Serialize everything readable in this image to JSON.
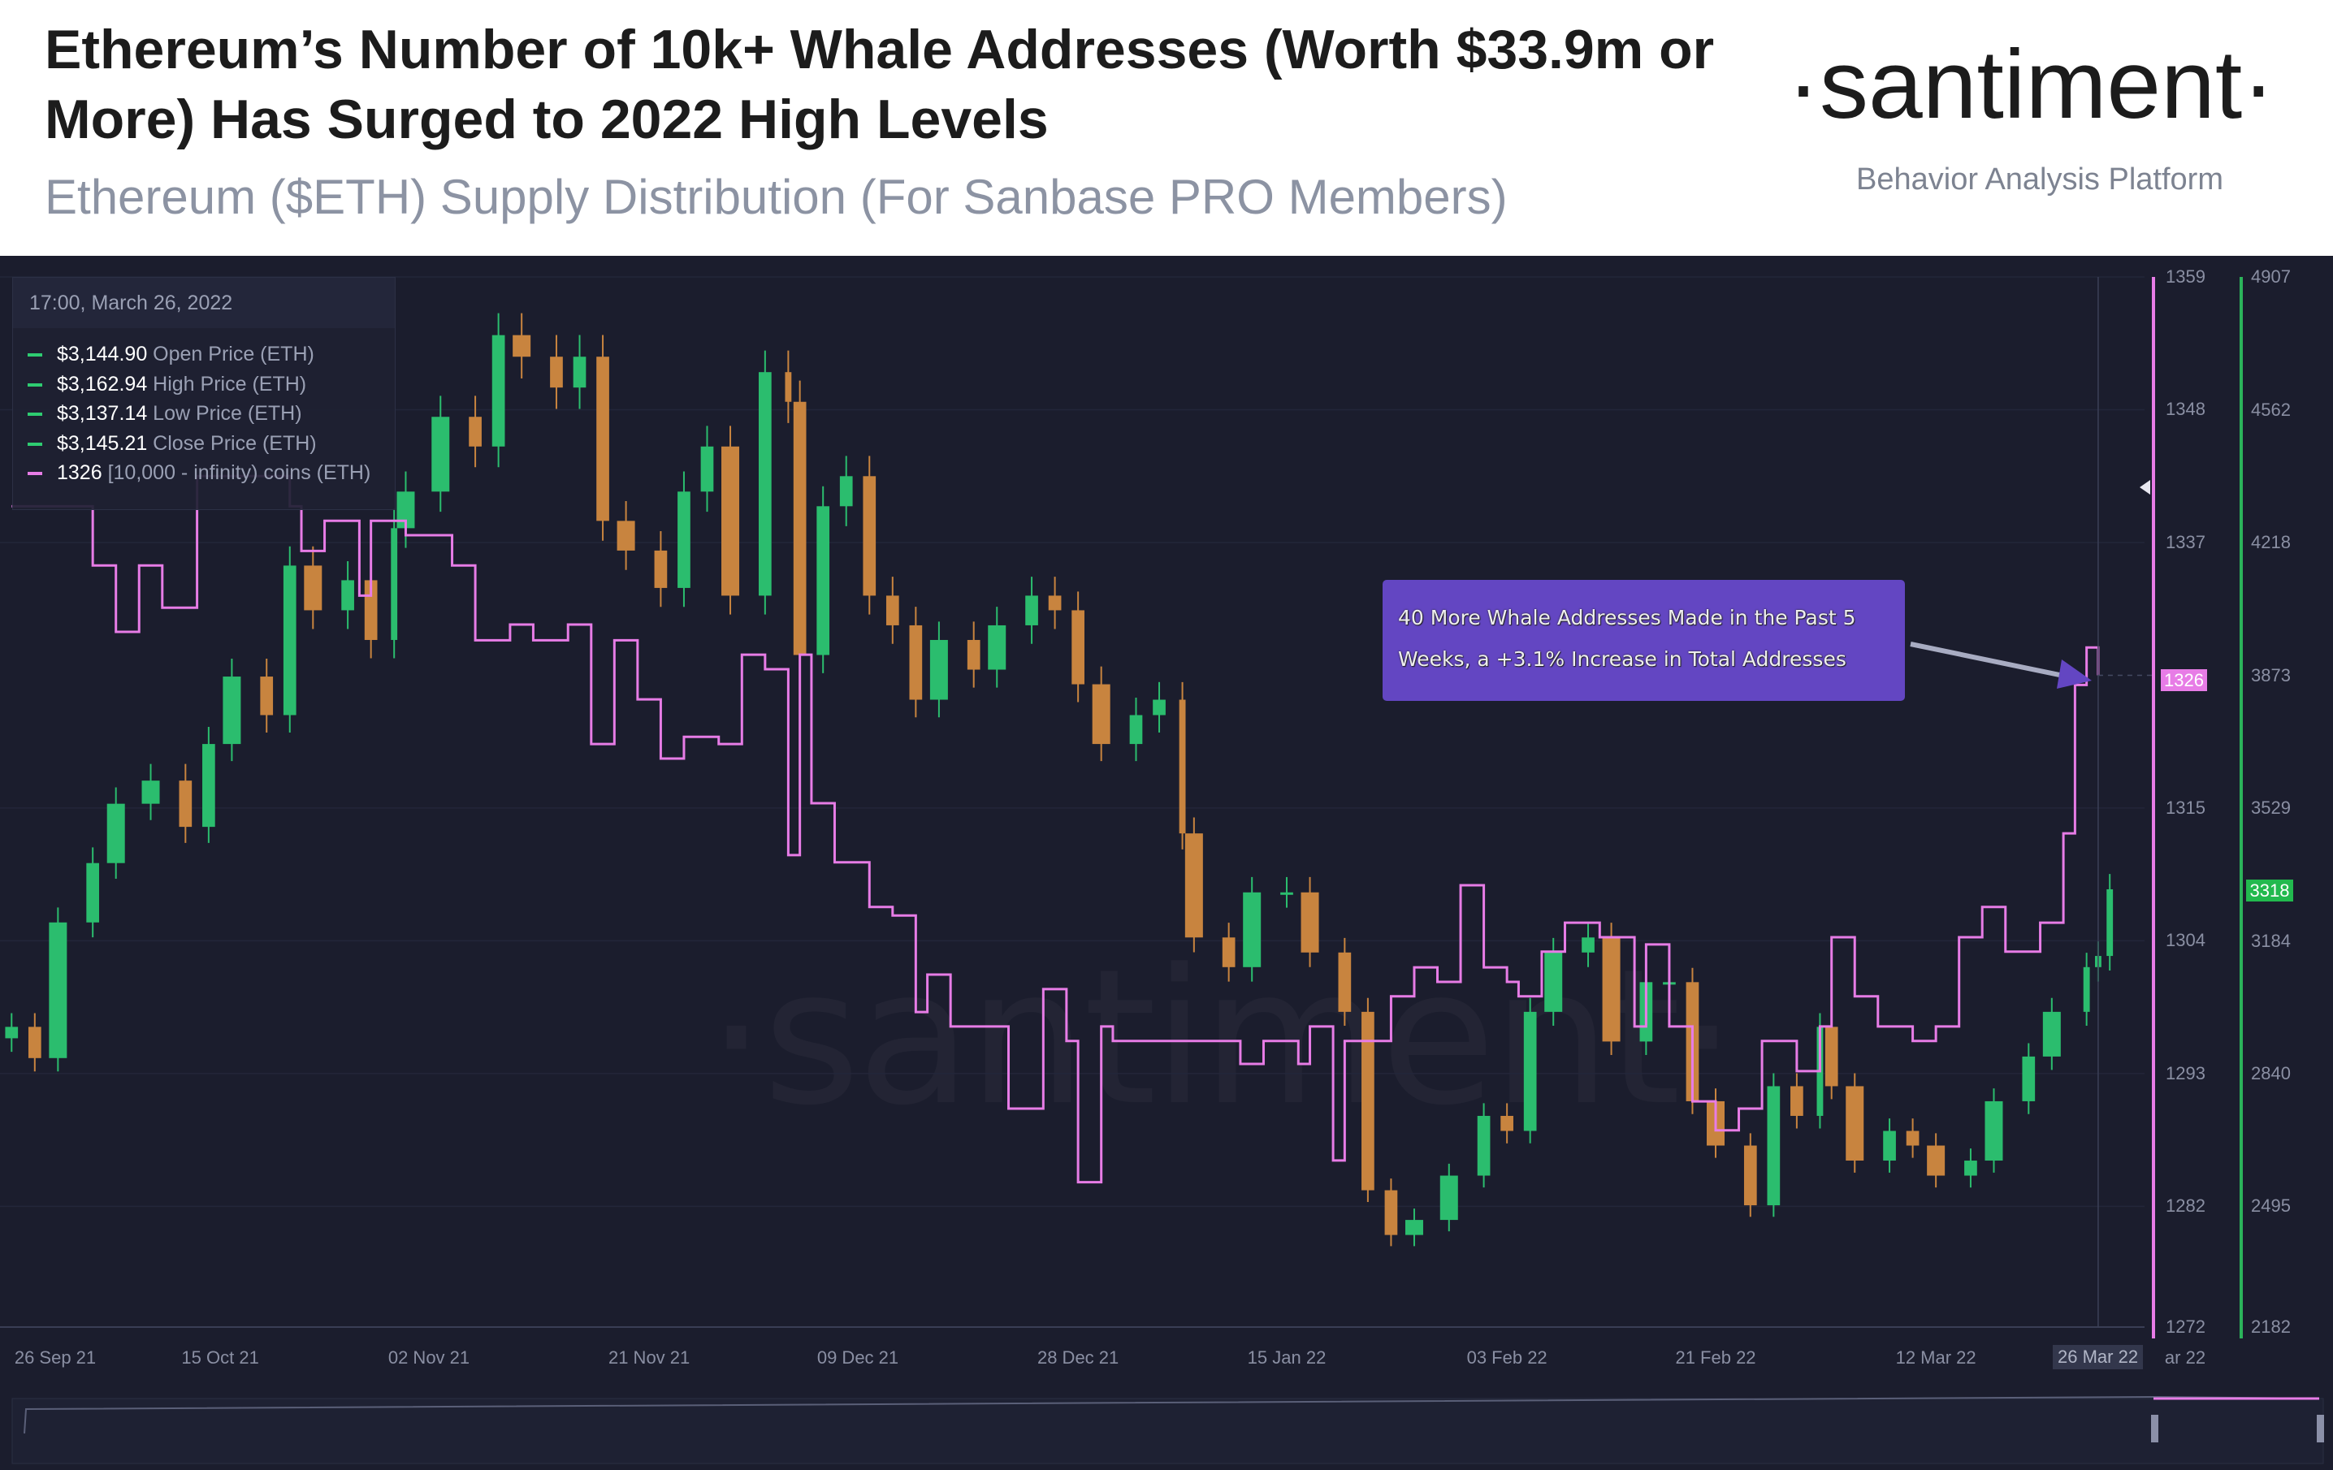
{
  "header": {
    "title": "Ethereum’s Number of 10k+ Whale Addresses (Worth $33.9m or More) Has Surged to 2022 High Levels",
    "subtitle": "Ethereum ($ETH) Supply Distribution (For Sanbase PRO Members)",
    "logo": "·santiment·",
    "tagline": "Behavior Analysis Platform"
  },
  "tooltip": {
    "date": "17:00, March 26, 2022",
    "rows": [
      {
        "value": "$3,144.90",
        "label": "Open Price (ETH)",
        "color": "#2ecc71"
      },
      {
        "value": "$3,162.94",
        "label": "High Price (ETH)",
        "color": "#2ecc71"
      },
      {
        "value": "$3,137.14",
        "label": "Low Price (ETH)",
        "color": "#2ecc71"
      },
      {
        "value": "$3,145.21",
        "label": "Close Price (ETH)",
        "color": "#2ecc71"
      },
      {
        "value": "1326",
        "label": "[10,000 - infinity) coins (ETH)",
        "color": "#e77ce6"
      }
    ]
  },
  "annotation": {
    "line1": "40 More Whale Addresses Made in the Past 5",
    "line2": "Weeks, a +3.1% Increase in Total Addresses"
  },
  "badges": {
    "whale": "1326",
    "price": "3318"
  },
  "crosshair_label": "26 Mar 22",
  "clipped_label": "ar 22",
  "colors": {
    "background": "#1b1d2d",
    "whale_line": "#e77ce6",
    "up_candle": "#2bbd6e",
    "down_candle": "#c8843f",
    "annotation": "#6346c2"
  },
  "chart_data": {
    "type": "candlestick+line",
    "xlim": [
      "2021-09-26",
      "2022-03-30"
    ],
    "x_ticks": [
      {
        "date": "2021-09-28",
        "label": "26 Sep 21"
      },
      {
        "date": "2021-10-15",
        "label": "15 Oct 21"
      },
      {
        "date": "2021-11-02",
        "label": "02 Nov 21"
      },
      {
        "date": "2021-11-21",
        "label": "21 Nov 21"
      },
      {
        "date": "2021-12-09",
        "label": "09 Dec 21"
      },
      {
        "date": "2021-12-28",
        "label": "28 Dec 21"
      },
      {
        "date": "2022-01-15",
        "label": "15 Jan 22"
      },
      {
        "date": "2022-02-03",
        "label": "03 Feb 22"
      },
      {
        "date": "2022-02-21",
        "label": "21 Feb 22"
      },
      {
        "date": "2022-03-12",
        "label": "12 Mar 22"
      }
    ],
    "whale_axis": {
      "ylim": [
        1272,
        1359
      ],
      "ticks": [
        1359,
        1348,
        1337,
        1315,
        1304,
        1293,
        1282,
        1272
      ]
    },
    "price_axis": {
      "ylim": [
        2182,
        4907
      ],
      "ticks": [
        4907,
        4562,
        4218,
        3873,
        3529,
        3184,
        2840,
        2495,
        2182
      ]
    },
    "series": [
      {
        "name": "Close Price (ETH)",
        "kind": "candlestick",
        "points": [
          [
            "2021-09-27",
            2961
          ],
          [
            "2021-09-29",
            2880
          ],
          [
            "2021-10-01",
            3232
          ],
          [
            "2021-10-04",
            3386
          ],
          [
            "2021-10-06",
            3540
          ],
          [
            "2021-10-09",
            3600
          ],
          [
            "2021-10-12",
            3480
          ],
          [
            "2021-10-14",
            3695
          ],
          [
            "2021-10-16",
            3870
          ],
          [
            "2021-10-19",
            3770
          ],
          [
            "2021-10-21",
            4158
          ],
          [
            "2021-10-23",
            4042
          ],
          [
            "2021-10-26",
            4120
          ],
          [
            "2021-10-28",
            3965
          ],
          [
            "2021-10-30",
            4255
          ],
          [
            "2021-10-31",
            4350
          ],
          [
            "2021-11-03",
            4544
          ],
          [
            "2021-11-06",
            4467
          ],
          [
            "2021-11-08",
            4756
          ],
          [
            "2021-11-10",
            4700
          ],
          [
            "2021-11-13",
            4620
          ],
          [
            "2021-11-15",
            4700
          ],
          [
            "2021-11-17",
            4274
          ],
          [
            "2021-11-19",
            4197
          ],
          [
            "2021-11-22",
            4100
          ],
          [
            "2021-11-24",
            4350
          ],
          [
            "2021-11-26",
            4467
          ],
          [
            "2021-11-28",
            4080
          ],
          [
            "2021-12-01",
            4660
          ],
          [
            "2021-12-03",
            4583
          ],
          [
            "2021-12-04",
            3926
          ],
          [
            "2021-12-06",
            4312
          ],
          [
            "2021-12-08",
            4390
          ],
          [
            "2021-12-10",
            4080
          ],
          [
            "2021-12-12",
            4003
          ],
          [
            "2021-12-14",
            3810
          ],
          [
            "2021-12-16",
            3965
          ],
          [
            "2021-12-19",
            3888
          ],
          [
            "2021-12-21",
            4003
          ],
          [
            "2021-12-24",
            4080
          ],
          [
            "2021-12-26",
            4042
          ],
          [
            "2021-12-28",
            3850
          ],
          [
            "2021-12-30",
            3695
          ],
          [
            "2022-01-02",
            3770
          ],
          [
            "2022-01-04",
            3810
          ],
          [
            "2022-01-06",
            3463
          ],
          [
            "2022-01-07",
            3193
          ],
          [
            "2022-01-10",
            3116
          ],
          [
            "2022-01-12",
            3310
          ],
          [
            "2022-01-15",
            3310
          ],
          [
            "2022-01-17",
            3154
          ],
          [
            "2022-01-20",
            3000
          ],
          [
            "2022-01-22",
            2537
          ],
          [
            "2022-01-24",
            2421
          ],
          [
            "2022-01-26",
            2460
          ],
          [
            "2022-01-29",
            2575
          ],
          [
            "2022-02-01",
            2730
          ],
          [
            "2022-02-03",
            2691
          ],
          [
            "2022-02-05",
            3000
          ],
          [
            "2022-02-07",
            3154
          ],
          [
            "2022-02-10",
            3193
          ],
          [
            "2022-02-12",
            2923
          ],
          [
            "2022-02-15",
            3077
          ],
          [
            "2022-02-17",
            3077
          ],
          [
            "2022-02-19",
            2768
          ],
          [
            "2022-02-21",
            2653
          ],
          [
            "2022-02-24",
            2498
          ],
          [
            "2022-02-26",
            2807
          ],
          [
            "2022-02-28",
            2730
          ],
          [
            "2022-03-02",
            2961
          ],
          [
            "2022-03-03",
            2807
          ],
          [
            "2022-03-05",
            2614
          ],
          [
            "2022-03-08",
            2691
          ],
          [
            "2022-03-10",
            2653
          ],
          [
            "2022-03-12",
            2575
          ],
          [
            "2022-03-15",
            2614
          ],
          [
            "2022-03-17",
            2768
          ],
          [
            "2022-03-20",
            2884
          ],
          [
            "2022-03-22",
            3000
          ],
          [
            "2022-03-25",
            3116
          ],
          [
            "2022-03-26",
            3145
          ],
          [
            "2022-03-27",
            3318
          ]
        ]
      },
      {
        "name": "[10,000 - infinity) coins (ETH)",
        "kind": "line",
        "points": [
          [
            "2021-09-27",
            1340
          ],
          [
            "2021-10-02",
            1340
          ],
          [
            "2021-10-04",
            1335.1
          ],
          [
            "2021-10-06",
            1329.6
          ],
          [
            "2021-10-08",
            1335.1
          ],
          [
            "2021-10-09",
            1335.1
          ],
          [
            "2021-10-10",
            1331.6
          ],
          [
            "2021-10-12",
            1331.6
          ],
          [
            "2021-10-13",
            1342.5
          ],
          [
            "2021-10-21",
            1340
          ],
          [
            "2021-10-22",
            1336.3
          ],
          [
            "2021-10-24",
            1338.8
          ],
          [
            "2021-10-27",
            1332.6
          ],
          [
            "2021-10-28",
            1338.8
          ],
          [
            "2021-10-31",
            1337.6
          ],
          [
            "2021-11-02",
            1337.6
          ],
          [
            "2021-11-04",
            1335.1
          ],
          [
            "2021-11-06",
            1328.9
          ],
          [
            "2021-11-09",
            1330.2
          ],
          [
            "2021-11-11",
            1328.9
          ],
          [
            "2021-11-14",
            1330.2
          ],
          [
            "2021-11-16",
            1320.3
          ],
          [
            "2021-11-18",
            1328.9
          ],
          [
            "2021-11-20",
            1324
          ],
          [
            "2021-11-22",
            1319.1
          ],
          [
            "2021-11-24",
            1320.9
          ],
          [
            "2021-11-27",
            1320.3
          ],
          [
            "2021-11-29",
            1327.7
          ],
          [
            "2021-12-01",
            1326.5
          ],
          [
            "2021-12-03",
            1311.1
          ],
          [
            "2021-12-04",
            1327.7
          ],
          [
            "2021-12-05",
            1315.4
          ],
          [
            "2021-12-07",
            1310.5
          ],
          [
            "2021-12-10",
            1306.8
          ],
          [
            "2021-12-12",
            1306.1
          ],
          [
            "2021-12-14",
            1298.1
          ],
          [
            "2021-12-15",
            1301.2
          ],
          [
            "2021-12-17",
            1296.9
          ],
          [
            "2021-12-20",
            1296.9
          ],
          [
            "2021-12-22",
            1290.1
          ],
          [
            "2021-12-24",
            1290.1
          ],
          [
            "2021-12-25",
            1300
          ],
          [
            "2021-12-27",
            1295.7
          ],
          [
            "2021-12-28",
            1284
          ],
          [
            "2021-12-30",
            1296.9
          ],
          [
            "2021-12-31",
            1295.7
          ],
          [
            "2022-01-06",
            1295.7
          ],
          [
            "2022-01-11",
            1293.8
          ],
          [
            "2022-01-13",
            1295.7
          ],
          [
            "2022-01-16",
            1293.8
          ],
          [
            "2022-01-17",
            1296.9
          ],
          [
            "2022-01-19",
            1285.8
          ],
          [
            "2022-01-20",
            1295.7
          ],
          [
            "2022-01-24",
            1299.4
          ],
          [
            "2022-01-26",
            1301.8
          ],
          [
            "2022-01-28",
            1300.6
          ],
          [
            "2022-01-30",
            1308.6
          ],
          [
            "2022-02-01",
            1301.8
          ],
          [
            "2022-02-03",
            1300.6
          ],
          [
            "2022-02-04",
            1299.4
          ],
          [
            "2022-02-06",
            1303.1
          ],
          [
            "2022-02-08",
            1305.5
          ],
          [
            "2022-02-11",
            1304.3
          ],
          [
            "2022-02-14",
            1296.9
          ],
          [
            "2022-02-15",
            1303.7
          ],
          [
            "2022-02-17",
            1296.9
          ],
          [
            "2022-02-19",
            1290.7
          ],
          [
            "2022-02-21",
            1288.3
          ],
          [
            "2022-02-23",
            1290.1
          ],
          [
            "2022-02-25",
            1295.7
          ],
          [
            "2022-02-28",
            1293.2
          ],
          [
            "2022-03-02",
            1296.9
          ],
          [
            "2022-03-03",
            1304.3
          ],
          [
            "2022-03-05",
            1299.4
          ],
          [
            "2022-03-07",
            1296.9
          ],
          [
            "2022-03-10",
            1295.7
          ],
          [
            "2022-03-12",
            1296.9
          ],
          [
            "2022-03-14",
            1304.3
          ],
          [
            "2022-03-16",
            1306.8
          ],
          [
            "2022-03-18",
            1303.1
          ],
          [
            "2022-03-21",
            1305.5
          ],
          [
            "2022-03-23",
            1312.9
          ],
          [
            "2022-03-24",
            1325.2
          ],
          [
            "2022-03-25",
            1328.3
          ],
          [
            "2022-03-26",
            1326
          ]
        ]
      }
    ]
  }
}
